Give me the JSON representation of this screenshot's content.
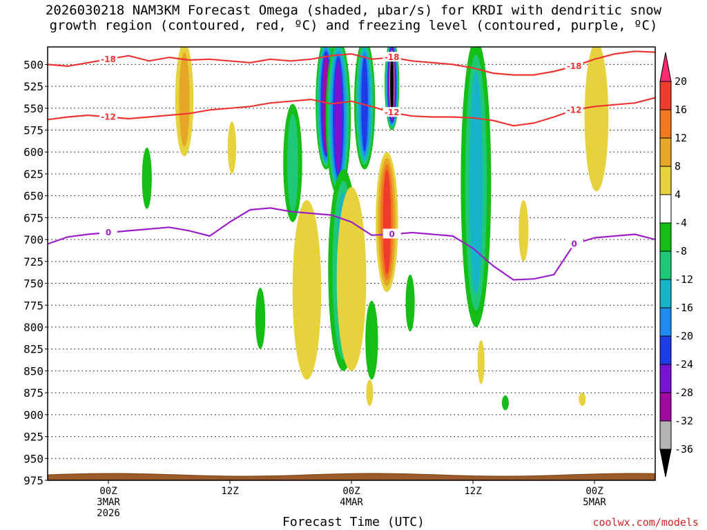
{
  "title": {
    "line1": "2026030218 NAM3KM Forecast Omega (shaded, μbar/s) for KRDI with dendritic snow",
    "line2": "growth region (contoured, red, ºC) and freezing level (contoured, purple, ºC)"
  },
  "chart_data": {
    "type": "time-height cross section",
    "title": "Forecast Omega (shaded, μbar/s) for KRDI",
    "xlabel": "Forecast Time (UTC)",
    "ylabel": "",
    "y_axis": {
      "ticks": [
        500,
        525,
        550,
        575,
        600,
        625,
        650,
        675,
        700,
        725,
        750,
        775,
        800,
        825,
        850,
        875,
        900,
        925,
        950,
        975
      ],
      "range": [
        975,
        480
      ],
      "grid": "dotted"
    },
    "x_axis": {
      "ticks": [
        {
          "hour": 0,
          "label": "00Z",
          "sub1": "3MAR",
          "sub2": "2026"
        },
        {
          "hour": 12,
          "label": "12Z",
          "sub1": "",
          "sub2": ""
        },
        {
          "hour": 24,
          "label": "00Z",
          "sub1": "4MAR",
          "sub2": ""
        },
        {
          "hour": 36,
          "label": "12Z",
          "sub1": "",
          "sub2": ""
        },
        {
          "hour": 48,
          "label": "00Z",
          "sub1": "5MAR",
          "sub2": ""
        }
      ],
      "range": [
        -6,
        54
      ]
    },
    "colorbar": {
      "labels": [
        "20",
        "16",
        "12",
        "8",
        "4",
        "-4",
        "-8",
        "-12",
        "-16",
        "-20",
        "-24",
        "-28",
        "-32",
        "-36"
      ],
      "colors": [
        "#ff2a6e",
        "#f03c2c",
        "#f0781e",
        "#e6a628",
        "#e6d23c",
        "#ffffff",
        "#14be14",
        "#1ec878",
        "#16b4c8",
        "#1e8cf0",
        "#1e3ce6",
        "#7814d2",
        "#a00aa0",
        "#b4b4b4",
        "#000000"
      ]
    },
    "contours": [
      {
        "name": "dendritic growth -18C",
        "color": "#ee3333",
        "label": "-18",
        "points": [
          [
            -6,
            500
          ],
          [
            -4,
            502
          ],
          [
            -2,
            498
          ],
          [
            0,
            494
          ],
          [
            2,
            490
          ],
          [
            4,
            496
          ],
          [
            6,
            492
          ],
          [
            8,
            495
          ],
          [
            10,
            494
          ],
          [
            12,
            496
          ],
          [
            14,
            498
          ],
          [
            16,
            494
          ],
          [
            18,
            496
          ],
          [
            20,
            494
          ],
          [
            22,
            490
          ],
          [
            24,
            488
          ],
          [
            26,
            494
          ],
          [
            28,
            492
          ],
          [
            30,
            496
          ],
          [
            32,
            498
          ],
          [
            34,
            500
          ],
          [
            36,
            504
          ],
          [
            38,
            510
          ],
          [
            40,
            512
          ],
          [
            42,
            512
          ],
          [
            44,
            508
          ],
          [
            46,
            502
          ],
          [
            48,
            494
          ],
          [
            50,
            488
          ],
          [
            52,
            485
          ],
          [
            54,
            486
          ]
        ]
      },
      {
        "name": "dendritic growth -12C",
        "color": "#ee3333",
        "label": "-12",
        "points": [
          [
            -6,
            563
          ],
          [
            -4,
            560
          ],
          [
            -2,
            558
          ],
          [
            0,
            560
          ],
          [
            2,
            562
          ],
          [
            4,
            560
          ],
          [
            6,
            558
          ],
          [
            8,
            556
          ],
          [
            10,
            552
          ],
          [
            12,
            550
          ],
          [
            14,
            548
          ],
          [
            16,
            544
          ],
          [
            18,
            542
          ],
          [
            20,
            540
          ],
          [
            22,
            545
          ],
          [
            24,
            542
          ],
          [
            26,
            548
          ],
          [
            28,
            555
          ],
          [
            30,
            559
          ],
          [
            32,
            560
          ],
          [
            34,
            560
          ],
          [
            36,
            561
          ],
          [
            38,
            564
          ],
          [
            40,
            570
          ],
          [
            42,
            567
          ],
          [
            44,
            560
          ],
          [
            46,
            552
          ],
          [
            48,
            548
          ],
          [
            50,
            546
          ],
          [
            52,
            544
          ],
          [
            54,
            538
          ]
        ]
      },
      {
        "name": "freezing level 0C",
        "color": "#9b1ec8",
        "label": "0",
        "points": [
          [
            -6,
            705
          ],
          [
            -4,
            697
          ],
          [
            -2,
            694
          ],
          [
            0,
            692
          ],
          [
            2,
            690
          ],
          [
            4,
            688
          ],
          [
            6,
            686
          ],
          [
            8,
            690
          ],
          [
            10,
            696
          ],
          [
            12,
            680
          ],
          [
            14,
            666
          ],
          [
            16,
            664
          ],
          [
            18,
            668
          ],
          [
            20,
            670
          ],
          [
            22,
            672
          ],
          [
            24,
            680
          ],
          [
            26,
            695
          ],
          [
            28,
            694
          ],
          [
            30,
            692
          ],
          [
            32,
            694
          ],
          [
            34,
            696
          ],
          [
            36,
            710
          ],
          [
            38,
            730
          ],
          [
            40,
            746
          ],
          [
            42,
            745
          ],
          [
            44,
            740
          ],
          [
            46,
            705
          ],
          [
            48,
            698
          ],
          [
            50,
            696
          ],
          [
            52,
            694
          ],
          [
            54,
            700
          ]
        ]
      }
    ],
    "omega_features": [
      {
        "sign": "+",
        "hour": 7.5,
        "p_top": 475,
        "p_bot": 605,
        "level": 8,
        "peak": 4
      },
      {
        "sign": "-",
        "hour": 3.8,
        "p_top": 595,
        "p_bot": 665,
        "level": -4,
        "peak": -4
      },
      {
        "sign": "+",
        "hour": 12.2,
        "p_top": 565,
        "p_bot": 625,
        "level": 4,
        "peak": 4
      },
      {
        "sign": "-",
        "hour": 18.2,
        "p_top": 545,
        "p_bot": 680,
        "level": -8,
        "peak": -4
      },
      {
        "sign": "-",
        "hour": 21.5,
        "p_top": 470,
        "p_bot": 620,
        "level": -28,
        "peak": -4
      },
      {
        "sign": "-",
        "hour": 22.7,
        "p_top": 470,
        "p_bot": 650,
        "level": -24,
        "peak": -4
      },
      {
        "sign": "-",
        "hour": 25.3,
        "p_top": 470,
        "p_bot": 620,
        "level": -20,
        "peak": -4
      },
      {
        "sign": "-",
        "hour": 28.0,
        "p_top": 470,
        "p_bot": 575,
        "level": -36,
        "peak": -4
      },
      {
        "sign": "+",
        "hour": 27.5,
        "p_top": 600,
        "p_bot": 760,
        "level": 16,
        "peak": 4
      },
      {
        "sign": "-",
        "hour": 23.2,
        "p_top": 620,
        "p_bot": 850,
        "level": -12,
        "peak": -4
      },
      {
        "sign": "+",
        "hour": 24.0,
        "p_top": 640,
        "p_bot": 850,
        "level": 4,
        "peak": 4
      },
      {
        "sign": "+",
        "hour": 19.6,
        "p_top": 655,
        "p_bot": 860,
        "level": 4,
        "peak": 4
      },
      {
        "sign": "-",
        "hour": 36.3,
        "p_top": 470,
        "p_bot": 800,
        "level": -12,
        "peak": -4
      },
      {
        "sign": "+",
        "hour": 48.2,
        "p_top": 475,
        "p_bot": 645,
        "level": 4,
        "peak": 4
      },
      {
        "sign": "-",
        "hour": 15.0,
        "p_top": 755,
        "p_bot": 825,
        "level": -4,
        "peak": -4
      },
      {
        "sign": "-",
        "hour": 26.0,
        "p_top": 770,
        "p_bot": 860,
        "level": -4,
        "peak": -4
      },
      {
        "sign": "-",
        "hour": 29.8,
        "p_top": 740,
        "p_bot": 805,
        "level": -4,
        "peak": -4
      },
      {
        "sign": "+",
        "hour": 25.8,
        "p_top": 860,
        "p_bot": 890,
        "level": 4,
        "peak": 4
      },
      {
        "sign": "+",
        "hour": 36.8,
        "p_top": 815,
        "p_bot": 865,
        "level": 4,
        "peak": 4
      },
      {
        "sign": "+",
        "hour": 41.0,
        "p_top": 655,
        "p_bot": 725,
        "level": 4,
        "peak": 4
      },
      {
        "sign": "-",
        "hour": 39.2,
        "p_top": 878,
        "p_bot": 895,
        "level": -4,
        "peak": -4
      },
      {
        "sign": "+",
        "hour": 46.8,
        "p_top": 875,
        "p_bot": 890,
        "level": 4,
        "peak": 4
      }
    ]
  },
  "credit": "coolwx.com/models"
}
